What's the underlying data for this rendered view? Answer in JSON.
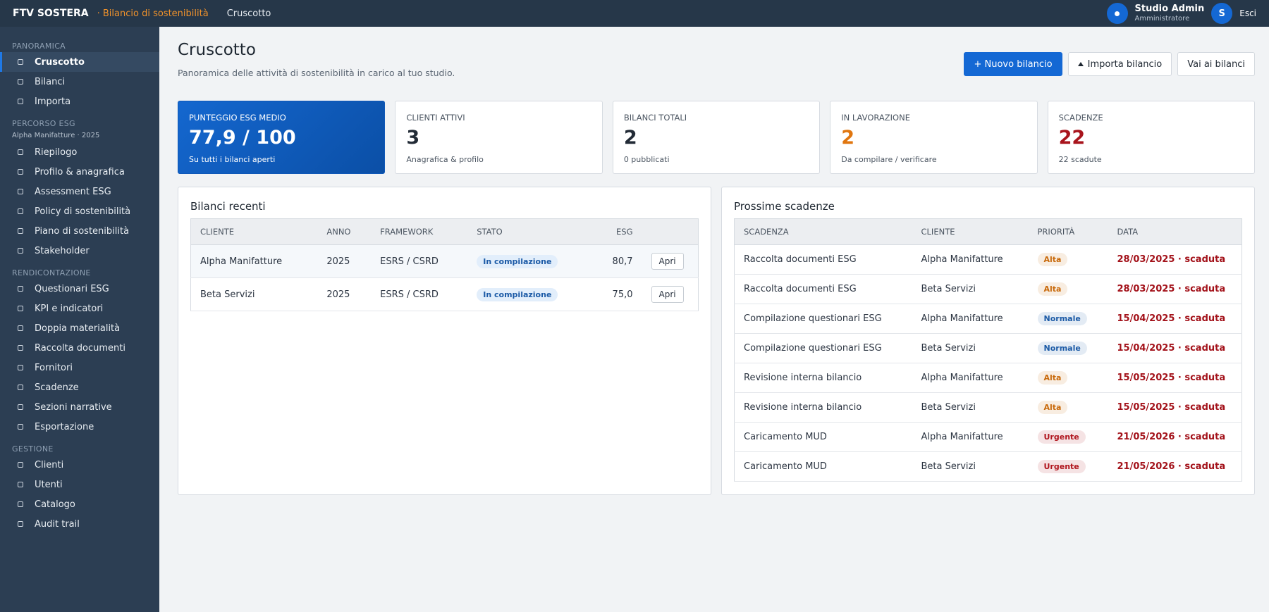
{
  "topbar": {
    "brand": "FTV SOSTERA",
    "product": "· Bilancio di sostenibilità",
    "crumb": "Cruscotto",
    "user_name": "Studio Admin",
    "user_role": "Amministratore",
    "user_initial": "S",
    "logout": "Esci"
  },
  "sidebar": [
    {
      "title": "PANORAMICA",
      "items": [
        "Cruscotto",
        "Bilanci",
        "Importa"
      ]
    },
    {
      "title": "PERCORSO ESG",
      "subtitle": "Alpha Manifatture · 2025",
      "items": [
        "Riepilogo",
        "Profilo & anagrafica",
        "Assessment ESG",
        "Policy di sostenibilità",
        "Piano di sostenibilità",
        "Stakeholder"
      ]
    },
    {
      "title": "RENDICONTAZIONE",
      "items": [
        "Questionari ESG",
        "KPI e indicatori",
        "Doppia materialità",
        "Raccolta documenti",
        "Fornitori",
        "Scadenze",
        "Sezioni narrative",
        "Esportazione"
      ]
    },
    {
      "title": "GESTIONE",
      "items": [
        "Clienti",
        "Utenti",
        "Catalogo",
        "Audit trail"
      ]
    }
  ],
  "header": {
    "title": "Cruscotto",
    "subtitle": "Panoramica delle attività di sostenibilità in carico al tuo studio.",
    "buttons": [
      "+ Nuovo bilancio",
      "Importa bilancio",
      "Vai ai bilanci"
    ]
  },
  "kpis": [
    {
      "label": "PUNTEGGIO ESG MEDIO",
      "value": "77,9 / 100",
      "note": "Su tutti i bilanci aperti",
      "color": "#ffffff"
    },
    {
      "label": "CLIENTI ATTIVI",
      "value": "3",
      "note": "Anagrafica & profilo",
      "color": "#222b36"
    },
    {
      "label": "BILANCI TOTALI",
      "value": "2",
      "note": "0 pubblicati",
      "color": "#222b36"
    },
    {
      "label": "IN LAVORAZIONE",
      "value": "2",
      "note": "Da compilare / verificare",
      "color": "#e0760f"
    },
    {
      "label": "SCADENZE",
      "value": "22",
      "note": "22 scadute",
      "color": "#a8141c"
    }
  ],
  "recent": {
    "title": "Bilanci recenti",
    "headers": [
      "CLIENTE",
      "ANNO",
      "FRAMEWORK",
      "STATO",
      "ESG"
    ],
    "action": "Apri",
    "rows": [
      [
        "Alpha Manifatture",
        "2025",
        "ESRS / CSRD",
        "In compilazione",
        "80,7"
      ],
      [
        "Beta Servizi",
        "2025",
        "ESRS / CSRD",
        "In compilazione",
        "75,0"
      ]
    ]
  },
  "deadlines": {
    "title": "Prossime scadenze",
    "headers": [
      "SCADENZA",
      "CLIENTE",
      "PRIORITÀ",
      "DATA"
    ],
    "rows": [
      {
        "task": "Raccolta documenti ESG",
        "client": "Alpha Manifatture",
        "priority": "Alta",
        "priority_color": "#c8690a",
        "date": "28/03/2025 · scaduta"
      },
      {
        "task": "Raccolta documenti ESG",
        "client": "Beta Servizi",
        "priority": "Alta",
        "priority_color": "#c8690a",
        "date": "28/03/2025 · scaduta"
      },
      {
        "task": "Compilazione questionari ESG",
        "client": "Alpha Manifatture",
        "priority": "Normale",
        "priority_color": "#1b5aa6",
        "date": "15/04/2025 · scaduta"
      },
      {
        "task": "Compilazione questionari ESG",
        "client": "Beta Servizi",
        "priority": "Normale",
        "priority_color": "#1b5aa6",
        "date": "15/04/2025 · scaduta"
      },
      {
        "task": "Revisione interna bilancio",
        "client": "Alpha Manifatture",
        "priority": "Alta",
        "priority_color": "#c8690a",
        "date": "15/05/2025 · scaduta"
      },
      {
        "task": "Revisione interna bilancio",
        "client": "Beta Servizi",
        "priority": "Alta",
        "priority_color": "#c8690a",
        "date": "15/05/2025 · scaduta"
      },
      {
        "task": "Caricamento MUD",
        "client": "Alpha Manifatture",
        "priority": "Urgente",
        "priority_color": "#b0151d",
        "date": "21/05/2026 · scaduta"
      },
      {
        "task": "Caricamento MUD",
        "client": "Beta Servizi",
        "priority": "Urgente",
        "priority_color": "#b0151d",
        "date": "21/05/2026 · scaduta"
      }
    ]
  }
}
